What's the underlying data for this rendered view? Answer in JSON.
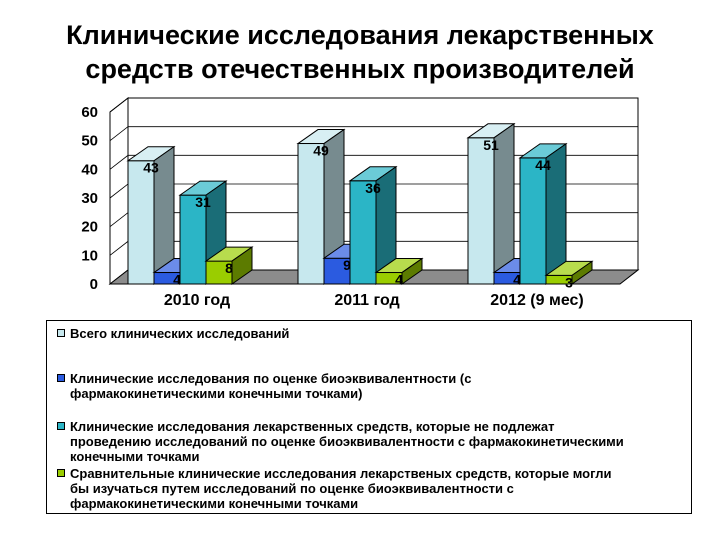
{
  "title_lines": [
    "Клинические исследования лекарственных",
    "средств отечественных производителей"
  ],
  "colors": {
    "total": "#C7E8EE",
    "bioeq": "#2B5BE0",
    "not_bioeq": "#2BB5C6",
    "comparative": "#9ACD00"
  },
  "chart_data": {
    "type": "bar",
    "categories": [
      "2010 год",
      "2011 год",
      "2012 (9 мес)"
    ],
    "series": [
      {
        "name": "Всего клинических исследований",
        "values": [
          43,
          49,
          51
        ]
      },
      {
        "name": "Клинические исследования по оценке биоэквивалентности (с фармакокинетическими конечными точками)",
        "values": [
          4,
          9,
          4
        ]
      },
      {
        "name": "Клинические исследования лекарственных средств, которые не подлежат проведению исследований по оценке биоэквивалентности с фармакокинетическими конечными точками",
        "values": [
          31,
          36,
          44
        ]
      },
      {
        "name": "Сравнительные клинические исследования лекарственых средств, которые могли бы изучаться путем исследований по оценке биоэквивалентности с фармакокинетическими конечными точками",
        "values": [
          8,
          4,
          3
        ]
      }
    ],
    "ylim": [
      0,
      60
    ],
    "yticks": [
      "0",
      "10",
      "20",
      "30",
      "40",
      "50",
      "60"
    ],
    "grid": true,
    "legend_position": "bottom",
    "three_d": true
  },
  "legend": {
    "items": [
      {
        "lines": [
          "Всего клинических исследований"
        ]
      },
      {
        "lines": [
          "Клинические исследования по оценке биоэквивалентности (с",
          "фармакокинетическими конечными точками)"
        ]
      },
      {
        "lines": [
          "Клинические исследования лекарственных средств, которые не подлежат",
          "проведению исследований по оценке биоэквивалентности с фармакокинетическими",
          "конечными точками"
        ]
      },
      {
        "lines": [
          "Сравнительные клинические исследования лекарственых средств, которые могли",
          "бы изучаться путем исследований по оценке биоэквивалентности с",
          "фармакокинетическими конечными точками"
        ]
      }
    ]
  }
}
